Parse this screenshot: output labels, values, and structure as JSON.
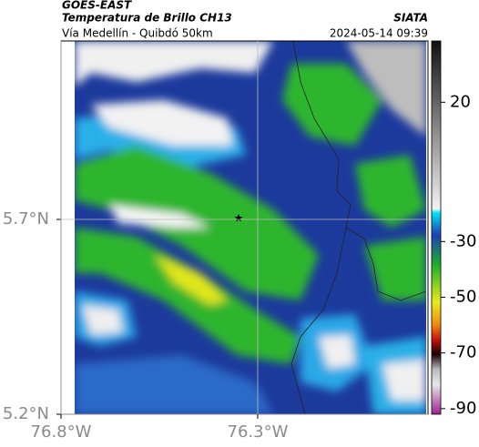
{
  "header": {
    "source": "GOES-EAST",
    "product": "Temperatura de Brillo CH13",
    "route": "Vía Medellín - Quibdó 50km",
    "agency": "SIATA",
    "datetime": "2024-05-14 09:39"
  },
  "map": {
    "latlim": [
      5.2,
      6.158
    ],
    "lonlim": [
      -76.8,
      -75.867
    ],
    "yticks": [
      {
        "value": 5.2,
        "label": "5.2°N"
      },
      {
        "value": 5.7,
        "label": "5.7°N"
      }
    ],
    "xticks": [
      {
        "value": -76.8,
        "label": "76.8°W"
      },
      {
        "value": -76.3,
        "label": "76.3°W"
      }
    ],
    "grid": true
  },
  "colorbar": {
    "lim": [
      -92,
      42
    ],
    "ticks": [
      20,
      -30,
      -50,
      -70,
      -90
    ]
  }
}
